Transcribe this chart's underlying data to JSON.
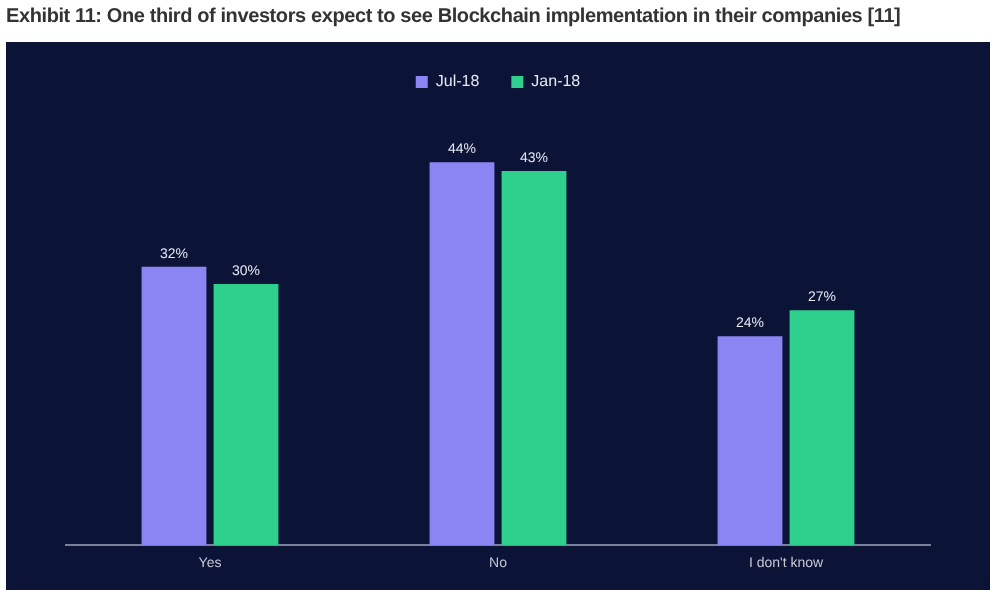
{
  "chart_data": {
    "type": "bar",
    "title": "Exhibit 11: One third of investors expect to see Blockchain implementation in their companies [11]",
    "categories": [
      "Yes",
      "No",
      "I don't know"
    ],
    "series": [
      {
        "name": "Jul-18",
        "color": "#8a85f2",
        "values": [
          32,
          44,
          24
        ],
        "value_labels": [
          "32%",
          "44%",
          "24%"
        ]
      },
      {
        "name": "Jan-18",
        "color": "#2fcf8e",
        "values": [
          30,
          43,
          27
        ],
        "value_labels": [
          "30%",
          "43%",
          "27%"
        ]
      }
    ],
    "legend": "top",
    "grid": false
  }
}
